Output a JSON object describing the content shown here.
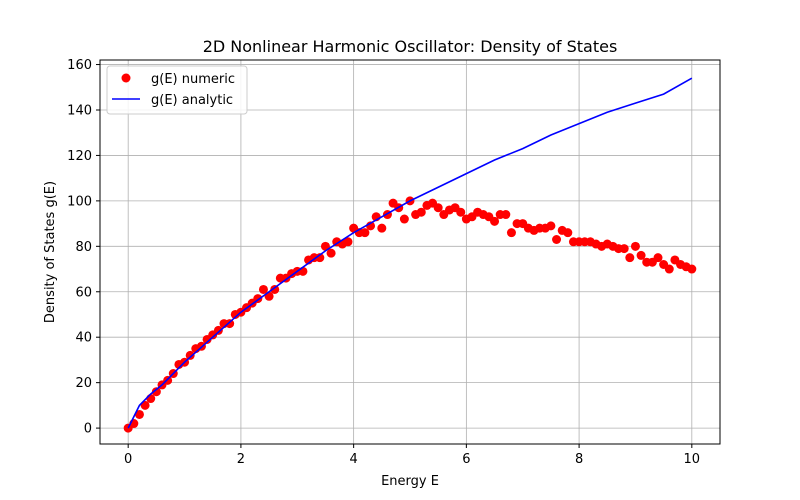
{
  "chart_data": {
    "type": "scatter",
    "title": "2D Nonlinear Harmonic Oscillator: Density of States",
    "xlabel": "Energy E",
    "ylabel": "Density of States g(E)",
    "xlim": [
      -0.5,
      10.5
    ],
    "ylim": [
      -7,
      162
    ],
    "xticks": [
      0,
      2,
      4,
      6,
      8,
      10
    ],
    "yticks": [
      0,
      20,
      40,
      60,
      80,
      100,
      120,
      140,
      160
    ],
    "grid": true,
    "legend": {
      "placement": "top-left"
    },
    "series": [
      {
        "name": "g(E) numeric",
        "kind": "scatter",
        "color": "#ff0000",
        "x": [
          0.0,
          0.1,
          0.2,
          0.3,
          0.4,
          0.5,
          0.6,
          0.7,
          0.8,
          0.9,
          1.0,
          1.1,
          1.2,
          1.3,
          1.4,
          1.5,
          1.6,
          1.7,
          1.8,
          1.9,
          2.0,
          2.1,
          2.2,
          2.3,
          2.4,
          2.5,
          2.6,
          2.7,
          2.8,
          2.9,
          3.0,
          3.1,
          3.2,
          3.3,
          3.4,
          3.5,
          3.6,
          3.7,
          3.8,
          3.9,
          4.0,
          4.1,
          4.2,
          4.3,
          4.4,
          4.5,
          4.6,
          4.7,
          4.8,
          4.9,
          5.0,
          5.1,
          5.2,
          5.3,
          5.4,
          5.5,
          5.6,
          5.7,
          5.8,
          5.9,
          6.0,
          6.1,
          6.2,
          6.3,
          6.4,
          6.5,
          6.6,
          6.7,
          6.8,
          6.9,
          7.0,
          7.1,
          7.2,
          7.3,
          7.4,
          7.5,
          7.6,
          7.7,
          7.8,
          7.9,
          8.0,
          8.1,
          8.2,
          8.3,
          8.4,
          8.5,
          8.6,
          8.7,
          8.8,
          8.9,
          9.0,
          9.1,
          9.2,
          9.3,
          9.4,
          9.5,
          9.6,
          9.7,
          9.8,
          9.9,
          10.0
        ],
        "y": [
          0,
          2,
          6,
          10,
          13,
          16,
          19,
          21,
          24,
          28,
          29,
          32,
          35,
          36,
          39,
          41,
          43,
          46,
          46,
          50,
          51,
          53,
          55,
          57,
          61,
          58,
          61,
          66,
          66,
          68,
          69,
          69,
          74,
          75,
          75,
          80,
          77,
          82,
          81,
          82,
          88,
          86,
          86,
          89,
          93,
          88,
          94,
          99,
          97,
          92,
          100,
          94,
          95,
          98,
          99,
          97,
          94,
          96,
          97,
          95,
          92,
          93,
          95,
          94,
          93,
          91,
          94,
          94,
          86,
          90,
          90,
          88,
          87,
          88,
          88,
          89,
          83,
          87,
          86,
          82,
          82,
          82,
          82,
          81,
          80,
          81,
          80,
          79,
          79,
          75,
          80,
          76,
          73,
          73,
          75,
          72,
          70,
          74,
          72,
          71,
          70
        ]
      },
      {
        "name": "g(E) analytic",
        "kind": "line",
        "color": "#0000ff",
        "x": [
          0.0,
          0.2,
          0.4,
          0.6,
          0.8,
          1.0,
          1.5,
          2.0,
          2.5,
          3.0,
          3.5,
          4.0,
          4.5,
          5.0,
          5.5,
          6.0,
          6.5,
          7.0,
          7.5,
          8.0,
          8.5,
          9.0,
          9.5,
          10.0
        ],
        "y": [
          0,
          10,
          15,
          19,
          24,
          29,
          40,
          51,
          60,
          69,
          78,
          86,
          93,
          100,
          106,
          112,
          118,
          123,
          129,
          134,
          139,
          143,
          147,
          154
        ]
      }
    ]
  }
}
